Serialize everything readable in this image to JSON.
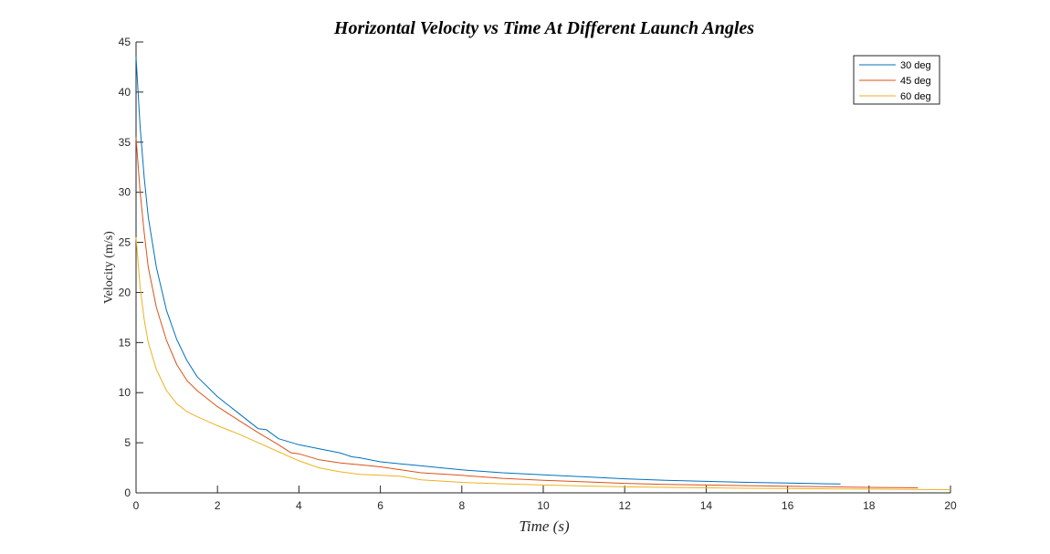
{
  "chart_data": {
    "type": "line",
    "title": "Horizontal Velocity vs Time At Different Launch Angles",
    "xlabel": "Time (s)",
    "ylabel": "Velocity (m/s)",
    "xlim": [
      0,
      20
    ],
    "ylim": [
      0,
      45
    ],
    "xticks": [
      "0",
      "2",
      "4",
      "6",
      "8",
      "10",
      "12",
      "14",
      "16",
      "18",
      "20"
    ],
    "yticks": [
      "0",
      "5",
      "10",
      "15",
      "20",
      "25",
      "30",
      "35",
      "40",
      "45"
    ],
    "grid": false,
    "legend_position": "top-right",
    "series": [
      {
        "name": "30 deg",
        "color": "#0072BD",
        "x": [
          0,
          0.1,
          0.2,
          0.3,
          0.5,
          0.75,
          1.0,
          1.25,
          1.5,
          2.0,
          2.5,
          3.0,
          3.2,
          3.5,
          4.0,
          4.5,
          5.0,
          5.3,
          5.5,
          6.0,
          6.5,
          7.0,
          7.5,
          8.0,
          9.0,
          10.0,
          11.0,
          12.0,
          13.0,
          14.0,
          15.0,
          16.0,
          17.0,
          17.3
        ],
        "y": [
          43.5,
          36.5,
          31.5,
          27.5,
          22.5,
          18.2,
          15.3,
          13.2,
          11.6,
          9.6,
          8.0,
          6.4,
          6.3,
          5.4,
          4.8,
          4.4,
          4.0,
          3.6,
          3.5,
          3.1,
          2.9,
          2.7,
          2.5,
          2.3,
          2.0,
          1.8,
          1.6,
          1.4,
          1.25,
          1.15,
          1.05,
          0.98,
          0.9,
          0.88
        ]
      },
      {
        "name": "45 deg",
        "color": "#D95319",
        "x": [
          0,
          0.1,
          0.2,
          0.3,
          0.5,
          0.75,
          1.0,
          1.25,
          1.5,
          2.0,
          2.5,
          3.0,
          3.5,
          3.8,
          4.0,
          4.5,
          5.0,
          5.5,
          6.0,
          7.0,
          8.0,
          9.0,
          10.0,
          11.0,
          12.0,
          13.0,
          14.0,
          15.0,
          16.0,
          17.0,
          18.0,
          19.2
        ],
        "y": [
          35.5,
          30.0,
          26.0,
          22.5,
          18.5,
          15.2,
          12.8,
          11.2,
          10.2,
          8.6,
          7.3,
          6.0,
          4.8,
          4.0,
          3.9,
          3.3,
          3.0,
          2.8,
          2.6,
          2.0,
          1.75,
          1.45,
          1.25,
          1.1,
          0.95,
          0.85,
          0.78,
          0.72,
          0.66,
          0.6,
          0.55,
          0.5
        ]
      },
      {
        "name": "60 deg",
        "color": "#EDB120",
        "x": [
          0,
          0.1,
          0.2,
          0.3,
          0.5,
          0.75,
          1.0,
          1.25,
          1.5,
          2.0,
          2.5,
          3.0,
          3.5,
          4.0,
          4.5,
          5.0,
          5.5,
          6.0,
          6.5,
          7.0,
          8.0,
          9.0,
          10.0,
          11.0,
          12.0,
          13.0,
          14.0,
          15.0,
          16.0,
          17.0,
          18.0,
          19.0,
          20.0
        ],
        "y": [
          25.5,
          20.5,
          17.3,
          15.0,
          12.3,
          10.2,
          8.9,
          8.1,
          7.6,
          6.7,
          5.9,
          5.0,
          4.1,
          3.2,
          2.5,
          2.1,
          1.85,
          1.75,
          1.65,
          1.3,
          1.05,
          0.9,
          0.78,
          0.68,
          0.6,
          0.55,
          0.5,
          0.46,
          0.43,
          0.4,
          0.37,
          0.34,
          0.32
        ]
      }
    ]
  }
}
